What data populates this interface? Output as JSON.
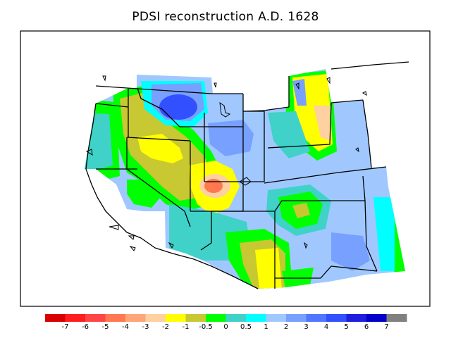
{
  "title": "PDSI reconstruction A.D. 1628",
  "legend": {
    "colors": [
      "#d90000",
      "#ff1e1e",
      "#ff4646",
      "#ff7850",
      "#ffa578",
      "#ffd0a0",
      "#ffff00",
      "#c8c832",
      "#00ff00",
      "#40d2c8",
      "#00ffff",
      "#a0c8ff",
      "#78a0ff",
      "#5078ff",
      "#3250ff",
      "#1e1edc",
      "#0000c8",
      "#808080"
    ],
    "labels": [
      "-7",
      "-6",
      "-5",
      "-4",
      "-3",
      "-2",
      "-1",
      "-0.5",
      "0",
      "0.5",
      "1",
      "2",
      "3",
      "4",
      "5",
      "6",
      "7"
    ]
  },
  "palette": {
    "land_base": "#a0c8ff",
    "very_wet": "#3250ff",
    "wet": "#78a0ff",
    "near_normal": "#00ffff",
    "slightly_wet": "#40d2c8",
    "normal": "#00ff00",
    "slightly_dry": "#c8c832",
    "dry": "#ffff00",
    "moderate_dry": "#ffd0a0",
    "severe_dry": "#ff7850",
    "outline": "#000000"
  }
}
